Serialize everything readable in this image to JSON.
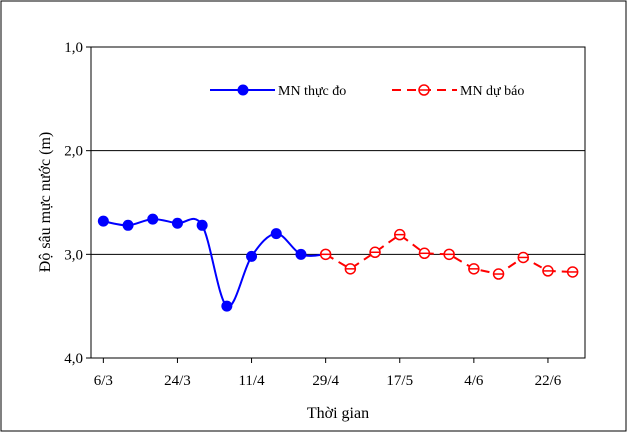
{
  "chart_data": {
    "type": "line",
    "xlabel": "Thời gian",
    "ylabel": "Độ sâu mực nước (m)",
    "ylim": [
      1.0,
      4.0
    ],
    "y_inverted": true,
    "y_ticks": [
      "1,0",
      "2,0",
      "3,0",
      "4,0"
    ],
    "x_ticks": [
      "6/3",
      "24/3",
      "11/4",
      "29/4",
      "17/5",
      "4/6",
      "22/6"
    ],
    "gridlines": "horizontal",
    "legend_position": "top-right",
    "series": [
      {
        "name": "MN thực đo",
        "color": "#0000ff",
        "style": "solid",
        "marker": "filled-circle",
        "x": [
          "6/3",
          "12/3",
          "18/3",
          "24/3",
          "30/3",
          "5/4",
          "11/4",
          "17/4",
          "23/4",
          "29/4"
        ],
        "y": [
          2.68,
          2.72,
          2.66,
          2.7,
          2.72,
          3.5,
          3.02,
          2.8,
          3.0,
          3.0
        ]
      },
      {
        "name": "MN dự báo",
        "color": "#ff0000",
        "style": "dashed",
        "marker": "open-circle",
        "x": [
          "29/4",
          "5/5",
          "11/5",
          "17/5",
          "23/5",
          "29/5",
          "4/6",
          "10/6",
          "16/6",
          "22/6",
          "28/6"
        ],
        "y": [
          3.0,
          3.14,
          2.98,
          2.81,
          2.99,
          3.0,
          3.14,
          3.19,
          3.03,
          3.16,
          3.17
        ]
      }
    ]
  }
}
